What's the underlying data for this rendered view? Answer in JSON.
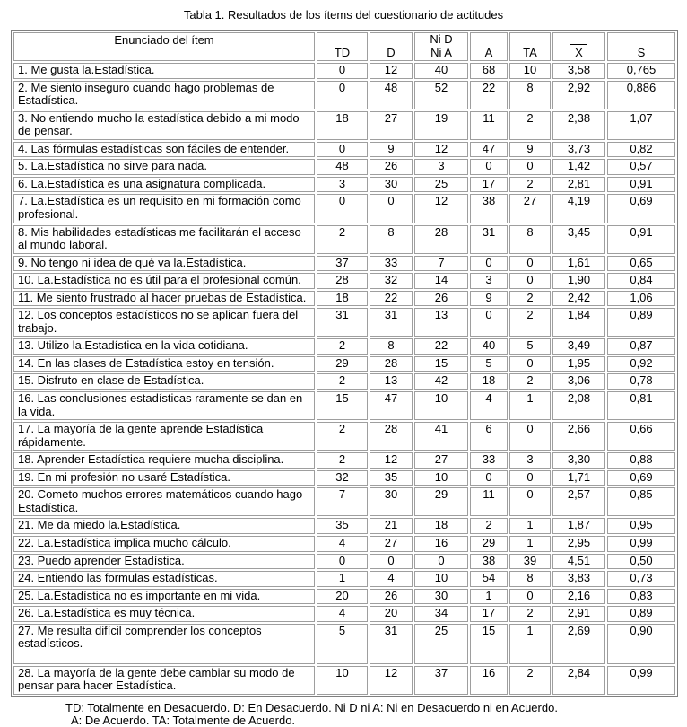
{
  "title": "Tabla 1. Resultados de los ítems del cuestionario de actitudes",
  "table": {
    "headers": {
      "item": "Enunciado del ítem",
      "td": "TD",
      "d": "D",
      "ni_line1": "Ni D",
      "ni_line2": "Ni A",
      "a": "A",
      "ta": "TA",
      "mean": "X",
      "s": "S"
    },
    "rows": [
      {
        "item": "1. Me gusta la.Estadística.",
        "td": "0",
        "d": "12",
        "ni": "40",
        "a": "68",
        "ta": "10",
        "mean": "3,58",
        "s": "0,765"
      },
      {
        "item": "2. Me siento inseguro cuando hago problemas de Estadística.",
        "td": "0",
        "d": "48",
        "ni": "52",
        "a": "22",
        "ta": "8",
        "mean": "2,92",
        "s": "0,886"
      },
      {
        "item": "3. No entiendo mucho la estadística debido a mi modo de pensar.",
        "td": "18",
        "d": "27",
        "ni": "19",
        "a": "11",
        "ta": "2",
        "mean": "2,38",
        "s": "1,07"
      },
      {
        "item": "4. Las fórmulas estadísticas son fáciles de entender.",
        "td": "0",
        "d": "9",
        "ni": "12",
        "a": "47",
        "ta": "9",
        "mean": "3,73",
        "s": "0,82"
      },
      {
        "item": "5. La.Estadística no sirve para nada.",
        "td": "48",
        "d": "26",
        "ni": "3",
        "a": "0",
        "ta": "0",
        "mean": "1,42",
        "s": "0,57"
      },
      {
        "item": "6. La.Estadística es una asignatura complicada.",
        "td": "3",
        "d": "30",
        "ni": "25",
        "a": "17",
        "ta": "2",
        "mean": "2,81",
        "s": "0,91"
      },
      {
        "item": "7. La.Estadística es un requisito en mi formación como profesional.",
        "td": "0",
        "d": "0",
        "ni": "12",
        "a": "38",
        "ta": "27",
        "mean": "4,19",
        "s": "0,69"
      },
      {
        "item": "8. Mis habilidades estadísticas me facilitarán el acceso al mundo laboral.",
        "td": "2",
        "d": "8",
        "ni": "28",
        "a": "31",
        "ta": "8",
        "mean": "3,45",
        "s": "0,91"
      },
      {
        "item": "9. No tengo ni idea de qué va la.Estadística.",
        "td": "37",
        "d": "33",
        "ni": "7",
        "a": "0",
        "ta": "0",
        "mean": "1,61",
        "s": "0,65"
      },
      {
        "item": "10. La.Estadística no es útil para el profesional común.",
        "td": "28",
        "d": "32",
        "ni": "14",
        "a": "3",
        "ta": "0",
        "mean": "1,90",
        "s": "0,84"
      },
      {
        "item": "11. Me siento frustrado al hacer pruebas de Estadística.",
        "td": "18",
        "d": "22",
        "ni": "26",
        "a": "9",
        "ta": "2",
        "mean": "2,42",
        "s": "1,06"
      },
      {
        "item": "12. Los conceptos estadísticos no se aplican fuera del trabajo.",
        "td": "31",
        "d": "31",
        "ni": "13",
        "a": "0",
        "ta": "2",
        "mean": "1,84",
        "s": "0,89"
      },
      {
        "item": "13. Utilizo la.Estadística en la vida cotidiana.",
        "td": "2",
        "d": "8",
        "ni": "22",
        "a": "40",
        "ta": "5",
        "mean": "3,49",
        "s": "0,87"
      },
      {
        "item": "14. En las clases de Estadística estoy en tensión.",
        "td": "29",
        "d": "28",
        "ni": "15",
        "a": "5",
        "ta": "0",
        "mean": "1,95",
        "s": "0,92"
      },
      {
        "item": "15. Disfruto en clase de Estadística.",
        "td": "2",
        "d": "13",
        "ni": "42",
        "a": "18",
        "ta": "2",
        "mean": "3,06",
        "s": "0,78"
      },
      {
        "item": "16. Las conclusiones estadísticas raramente se dan en la vida.",
        "td": "15",
        "d": "47",
        "ni": "10",
        "a": "4",
        "ta": "1",
        "mean": "2,08",
        "s": "0,81"
      },
      {
        "item": "17. La mayoría de la gente aprende Estadística rápidamente.",
        "td": "2",
        "d": "28",
        "ni": "41",
        "a": "6",
        "ta": "0",
        "mean": "2,66",
        "s": "0,66"
      },
      {
        "item": "18. Aprender Estadística requiere mucha disciplina.",
        "td": "2",
        "d": "12",
        "ni": "27",
        "a": "33",
        "ta": "3",
        "mean": "3,30",
        "s": "0,88"
      },
      {
        "item": "19. En mi profesión no usaré Estadística.",
        "td": "32",
        "d": "35",
        "ni": "10",
        "a": "0",
        "ta": "0",
        "mean": "1,71",
        "s": "0,69"
      },
      {
        "item": "20. Cometo muchos errores matemáticos cuando hago Estadística.",
        "td": "7",
        "d": "30",
        "ni": "29",
        "a": "11",
        "ta": "0",
        "mean": "2,57",
        "s": "0,85"
      },
      {
        "item": "21. Me da miedo la.Estadística.",
        "td": "35",
        "d": "21",
        "ni": "18",
        "a": "2",
        "ta": "1",
        "mean": "1,87",
        "s": "0,95"
      },
      {
        "item": "22. La.Estadística implica mucho cálculo.",
        "td": "4",
        "d": "27",
        "ni": "16",
        "a": "29",
        "ta": "1",
        "mean": "2,95",
        "s": "0,99"
      },
      {
        "item": "23. Puedo aprender Estadística.",
        "td": "0",
        "d": "0",
        "ni": "0",
        "a": "38",
        "ta": "39",
        "mean": "4,51",
        "s": "0,50"
      },
      {
        "item": "24. Entiendo las formulas estadísticas.",
        "td": "1",
        "d": "4",
        "ni": "10",
        "a": "54",
        "ta": "8",
        "mean": "3,83",
        "s": "0,73"
      },
      {
        "item": "25. La.Estadística no es importante en mi vida.",
        "td": "20",
        "d": "26",
        "ni": "30",
        "a": "1",
        "ta": "0",
        "mean": "2,16",
        "s": "0,83"
      },
      {
        "item": "26. La.Estadística es muy técnica.",
        "td": "4",
        "d": "20",
        "ni": "34",
        "a": "17",
        "ta": "2",
        "mean": "2,91",
        "s": "0,89"
      },
      {
        "item": "27. Me resulta difícil comprender los conceptos estadísticos.",
        "td": "5",
        "d": "31",
        "ni": "25",
        "a": "15",
        "ta": "1",
        "mean": "2,69",
        "s": "0,90"
      },
      {
        "item": "28. La mayoría de la gente debe cambiar su modo de pensar para hacer Estadística.",
        "td": "10",
        "d": "12",
        "ni": "37",
        "a": "16",
        "ta": "2",
        "mean": "2,84",
        "s": "0,99"
      }
    ]
  },
  "footnote": {
    "line1": "TD: Totalmente en Desacuerdo. D: En Desacuerdo. Ni D ni A: Ni en Desacuerdo ni en Acuerdo.",
    "line2": "A: De Acuerdo. TA: Totalmente de Acuerdo."
  }
}
